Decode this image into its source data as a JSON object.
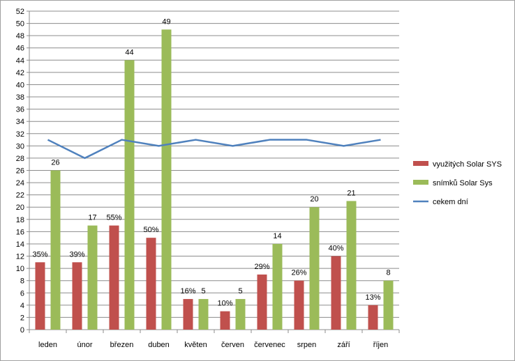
{
  "chart_data": {
    "type": "bar",
    "categories": [
      "leden",
      "únor",
      "březen",
      "duben",
      "květen",
      "červen",
      "červenec",
      "srpen",
      "září",
      "říjen"
    ],
    "ylim": [
      0,
      52
    ],
    "ytick_step": 2,
    "grid": true,
    "legend_position": "right",
    "series": [
      {
        "name": "využitých Solar SYS",
        "kind": "bar",
        "color": "#c0504d",
        "values": [
          11,
          11,
          17,
          15,
          5,
          3,
          9,
          8,
          12,
          4
        ],
        "labels": [
          "35%",
          "39%",
          "55%",
          "50%",
          "16%",
          "10%",
          "29%",
          "26%",
          "40%",
          "13%"
        ]
      },
      {
        "name": "snímků Solar Sys",
        "kind": "bar",
        "color": "#9bbb59",
        "values": [
          26,
          17,
          44,
          49,
          5,
          5,
          14,
          20,
          21,
          8
        ],
        "labels": [
          "26",
          "17",
          "44",
          "49",
          "5",
          "5",
          "14",
          "20",
          "21",
          "8"
        ]
      },
      {
        "name": "cekem dní",
        "kind": "line",
        "color": "#4f81bd",
        "values": [
          31,
          28,
          31,
          30,
          31,
          30,
          31,
          31,
          30,
          31
        ]
      }
    ]
  }
}
